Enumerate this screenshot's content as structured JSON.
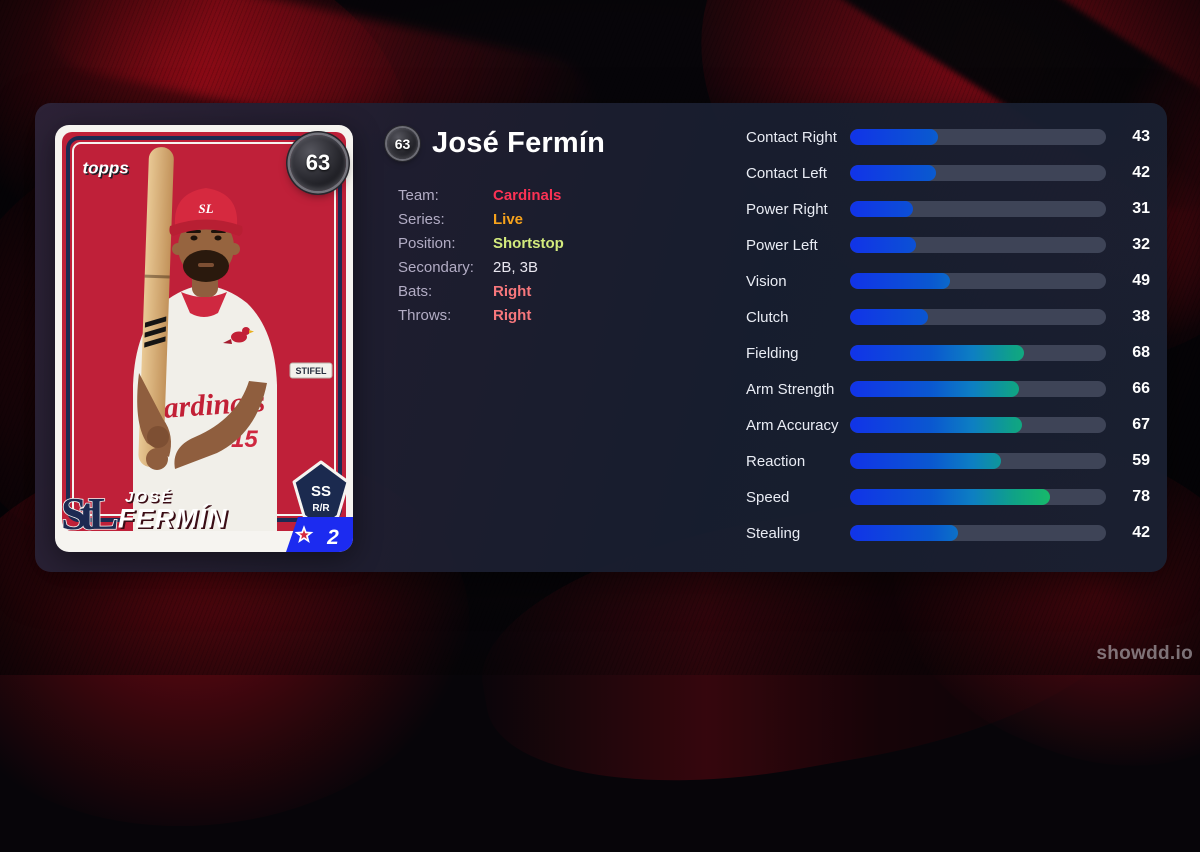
{
  "page": {
    "watermark": "showdd.io"
  },
  "player": {
    "rating": "63",
    "name": "José Fermín",
    "info_rows": [
      {
        "label": "Team:",
        "value": "Cardinals",
        "color": "#fb3254",
        "bold": true
      },
      {
        "label": "Series:",
        "value": "Live",
        "color": "#f6a21c",
        "bold": true
      },
      {
        "label": "Position:",
        "value": "Shortstop",
        "color": "#d3ea7d",
        "bold": true
      },
      {
        "label": "Secondary:",
        "value": "2B, 3B",
        "color": "#e9e7f0",
        "bold": false
      },
      {
        "label": "Bats:",
        "value": "Right",
        "color": "#f7777c",
        "bold": true
      },
      {
        "label": "Throws:",
        "value": "Right",
        "color": "#f7777c",
        "bold": true
      }
    ]
  },
  "card": {
    "brand": "topps",
    "first_name": "JOSÉ",
    "last_name": "FERMÍN",
    "position_abbr": "SS",
    "bats_throws": "R/R",
    "banner_value": "2",
    "jersey_script": "Cardinals",
    "jersey_number": "15",
    "sleeve_patch": "STIFEL",
    "team_monogram": "StL",
    "cap_logo": "SL",
    "colors": {
      "card_red": "#bf2039",
      "navy": "#1c2a52",
      "banner_blue": "#1c2bf0",
      "cream": "#f6f4f0"
    }
  },
  "stats": {
    "track_color": "#3e4457",
    "bar_gradient": "linear-gradient(90deg, #1133e8 0%, #0a58d0 32%, #0d7fc2 48%, #0fa287 64%, #17b96a 78%, #2bcb5b 100%)",
    "items": [
      {
        "label": "Contact Right",
        "value": 43,
        "max": 125
      },
      {
        "label": "Contact Left",
        "value": 42,
        "max": 125
      },
      {
        "label": "Power Right",
        "value": 31,
        "max": 125
      },
      {
        "label": "Power Left",
        "value": 32,
        "max": 125
      },
      {
        "label": "Vision",
        "value": 49,
        "max": 125
      },
      {
        "label": "Clutch",
        "value": 38,
        "max": 125
      },
      {
        "label": "Fielding",
        "value": 68,
        "max": 100
      },
      {
        "label": "Arm Strength",
        "value": 66,
        "max": 100
      },
      {
        "label": "Arm Accuracy",
        "value": 67,
        "max": 100
      },
      {
        "label": "Reaction",
        "value": 59,
        "max": 100
      },
      {
        "label": "Speed",
        "value": 78,
        "max": 100
      },
      {
        "label": "Stealing",
        "value": 42,
        "max": 100
      }
    ]
  }
}
